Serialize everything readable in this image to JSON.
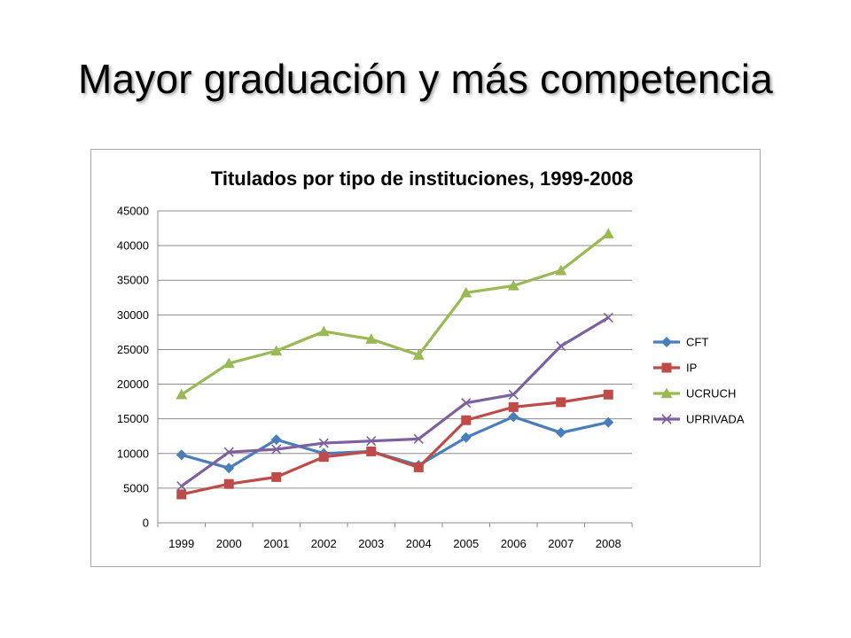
{
  "slide": {
    "title": "Mayor graduación y más competencia"
  },
  "chart_data": {
    "type": "line",
    "title": "Titulados por tipo de instituciones, 1999-2008",
    "xlabel": "",
    "ylabel": "",
    "categories": [
      "1999",
      "2000",
      "2001",
      "2002",
      "2003",
      "2004",
      "2005",
      "2006",
      "2007",
      "2008"
    ],
    "ylim": [
      0,
      45000
    ],
    "yticks": [
      0,
      5000,
      10000,
      15000,
      20000,
      25000,
      30000,
      35000,
      40000,
      45000
    ],
    "grid": "horizontal",
    "legend_position": "right",
    "series": [
      {
        "name": "CFT",
        "color": "#4a7ebb",
        "marker": "diamond",
        "values": [
          9800,
          7900,
          12000,
          10000,
          10300,
          8300,
          12300,
          15300,
          13000,
          14500
        ]
      },
      {
        "name": "IP",
        "color": "#be4b48",
        "marker": "square",
        "values": [
          4100,
          5600,
          6600,
          9500,
          10300,
          8000,
          14800,
          16700,
          17400,
          18500
        ]
      },
      {
        "name": "UCRUCH",
        "color": "#98b954",
        "marker": "triangle",
        "values": [
          18500,
          23000,
          24800,
          27600,
          26500,
          24200,
          33200,
          34200,
          36400,
          41700
        ]
      },
      {
        "name": "UPRIVADA",
        "color": "#7d60a0",
        "marker": "x",
        "values": [
          5300,
          10200,
          10600,
          11500,
          11800,
          12100,
          17300,
          18500,
          25500,
          29600
        ]
      }
    ]
  }
}
